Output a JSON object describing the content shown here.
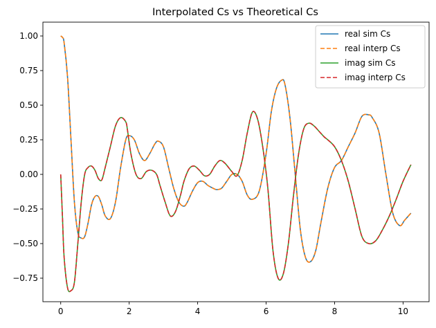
{
  "chart_data": {
    "type": "line",
    "title": "Interpolated Cs vs Theoretical Cs",
    "xlabel": "",
    "ylabel": "",
    "xlim": [
      -0.52,
      10.76
    ],
    "ylim": [
      -0.92,
      1.1
    ],
    "x_ticks": [
      0,
      2,
      4,
      6,
      8,
      10
    ],
    "y_ticks": [
      -0.75,
      -0.5,
      -0.25,
      0.0,
      0.25,
      0.5,
      0.75,
      1.0
    ],
    "y_tick_labels": [
      "−0.75",
      "−0.50",
      "−0.25",
      "0.00",
      "0.25",
      "0.50",
      "0.75",
      "1.00"
    ],
    "grid": false,
    "legend_position": "top-right",
    "series": [
      {
        "name": "real sim Cs",
        "color": "#1f77b4",
        "dash": "solid",
        "x": [
          0,
          0.05,
          0.1,
          0.2,
          0.3,
          0.4,
          0.5,
          0.6,
          0.7,
          0.8,
          0.9,
          1.0,
          1.1,
          1.2,
          1.3,
          1.45,
          1.6,
          1.75,
          1.9,
          2.0,
          2.15,
          2.3,
          2.45,
          2.6,
          2.75,
          2.85,
          3.0,
          3.15,
          3.3,
          3.45,
          3.6,
          3.7,
          3.85,
          4.0,
          4.15,
          4.3,
          4.45,
          4.55,
          4.7,
          4.85,
          5.0,
          5.15,
          5.3,
          5.45,
          5.6,
          5.8,
          6.0,
          6.15,
          6.3,
          6.45,
          6.55,
          6.7,
          6.85,
          7.0,
          7.15,
          7.3,
          7.45,
          7.6,
          7.8,
          8.0,
          8.2,
          8.4,
          8.6,
          8.8,
          9.0,
          9.1,
          9.3,
          9.5,
          9.7,
          9.9,
          10.05,
          10.23
        ],
        "y": [
          1.0,
          0.99,
          0.95,
          0.7,
          0.25,
          -0.2,
          -0.42,
          -0.46,
          -0.45,
          -0.35,
          -0.22,
          -0.16,
          -0.16,
          -0.22,
          -0.3,
          -0.32,
          -0.2,
          0.05,
          0.25,
          0.28,
          0.25,
          0.15,
          0.1,
          0.15,
          0.22,
          0.24,
          0.2,
          0.05,
          -0.1,
          -0.2,
          -0.23,
          -0.2,
          -0.12,
          -0.06,
          -0.05,
          -0.08,
          -0.1,
          -0.11,
          -0.1,
          -0.05,
          0.0,
          0.0,
          -0.05,
          -0.15,
          -0.18,
          -0.12,
          0.15,
          0.45,
          0.62,
          0.68,
          0.65,
          0.4,
          0.0,
          -0.4,
          -0.6,
          -0.63,
          -0.55,
          -0.35,
          -0.1,
          0.05,
          0.1,
          0.2,
          0.3,
          0.42,
          0.43,
          0.41,
          0.3,
          0.0,
          -0.28,
          -0.37,
          -0.33,
          -0.28
        ]
      },
      {
        "name": "real interp Cs",
        "color": "#ff7f0e",
        "dash": "dashed",
        "x": [
          0,
          0.05,
          0.1,
          0.2,
          0.3,
          0.4,
          0.5,
          0.6,
          0.7,
          0.8,
          0.9,
          1.0,
          1.1,
          1.2,
          1.3,
          1.45,
          1.6,
          1.75,
          1.9,
          2.0,
          2.15,
          2.3,
          2.45,
          2.6,
          2.75,
          2.85,
          3.0,
          3.15,
          3.3,
          3.45,
          3.6,
          3.7,
          3.85,
          4.0,
          4.15,
          4.3,
          4.45,
          4.55,
          4.7,
          4.85,
          5.0,
          5.15,
          5.3,
          5.45,
          5.6,
          5.8,
          6.0,
          6.15,
          6.3,
          6.45,
          6.55,
          6.7,
          6.85,
          7.0,
          7.15,
          7.3,
          7.45,
          7.6,
          7.8,
          8.0,
          8.2,
          8.4,
          8.6,
          8.8,
          9.0,
          9.1,
          9.3,
          9.5,
          9.7,
          9.9,
          10.05,
          10.23
        ],
        "y": [
          1.0,
          0.99,
          0.95,
          0.7,
          0.25,
          -0.2,
          -0.42,
          -0.46,
          -0.45,
          -0.35,
          -0.22,
          -0.16,
          -0.16,
          -0.22,
          -0.3,
          -0.32,
          -0.2,
          0.05,
          0.25,
          0.28,
          0.25,
          0.15,
          0.1,
          0.15,
          0.22,
          0.24,
          0.2,
          0.05,
          -0.1,
          -0.2,
          -0.23,
          -0.2,
          -0.12,
          -0.06,
          -0.05,
          -0.08,
          -0.1,
          -0.11,
          -0.1,
          -0.05,
          0.0,
          0.0,
          -0.05,
          -0.15,
          -0.18,
          -0.12,
          0.15,
          0.45,
          0.62,
          0.68,
          0.65,
          0.4,
          0.0,
          -0.4,
          -0.6,
          -0.63,
          -0.55,
          -0.35,
          -0.1,
          0.05,
          0.1,
          0.2,
          0.3,
          0.42,
          0.43,
          0.41,
          0.3,
          0.0,
          -0.28,
          -0.37,
          -0.33,
          -0.28
        ]
      },
      {
        "name": "imag sim Cs",
        "color": "#2ca02c",
        "dash": "solid",
        "x": [
          0,
          0.05,
          0.1,
          0.2,
          0.3,
          0.4,
          0.5,
          0.6,
          0.7,
          0.8,
          0.9,
          1.0,
          1.1,
          1.2,
          1.3,
          1.45,
          1.6,
          1.75,
          1.9,
          1.95,
          2.05,
          2.2,
          2.35,
          2.5,
          2.65,
          2.8,
          2.9,
          3.05,
          3.2,
          3.35,
          3.5,
          3.6,
          3.75,
          3.9,
          4.05,
          4.2,
          4.35,
          4.5,
          4.65,
          4.8,
          5.0,
          5.15,
          5.3,
          5.45,
          5.6,
          5.75,
          5.9,
          6.05,
          6.2,
          6.35,
          6.5,
          6.65,
          6.8,
          6.95,
          7.1,
          7.25,
          7.4,
          7.55,
          7.7,
          7.8,
          8.0,
          8.2,
          8.4,
          8.6,
          8.8,
          9.0,
          9.2,
          9.4,
          9.6,
          9.8,
          10.0,
          10.23
        ],
        "y": [
          0.0,
          -0.3,
          -0.6,
          -0.82,
          -0.84,
          -0.78,
          -0.5,
          -0.2,
          0.0,
          0.05,
          0.06,
          0.03,
          -0.03,
          -0.04,
          0.05,
          0.2,
          0.35,
          0.41,
          0.38,
          0.32,
          0.15,
          0.0,
          -0.03,
          0.02,
          0.03,
          0.0,
          -0.08,
          -0.2,
          -0.3,
          -0.27,
          -0.15,
          -0.05,
          0.04,
          0.06,
          0.03,
          -0.01,
          0.0,
          0.06,
          0.1,
          0.08,
          0.02,
          -0.01,
          0.1,
          0.3,
          0.45,
          0.4,
          0.2,
          -0.1,
          -0.55,
          -0.75,
          -0.72,
          -0.5,
          -0.15,
          0.15,
          0.33,
          0.37,
          0.35,
          0.31,
          0.27,
          0.25,
          0.2,
          0.1,
          -0.05,
          -0.25,
          -0.45,
          -0.5,
          -0.48,
          -0.4,
          -0.3,
          -0.18,
          -0.05,
          0.07
        ]
      },
      {
        "name": "imag interp Cs",
        "color": "#d62728",
        "dash": "dashed",
        "x": [
          0,
          0.05,
          0.1,
          0.2,
          0.3,
          0.4,
          0.5,
          0.6,
          0.7,
          0.8,
          0.9,
          1.0,
          1.1,
          1.2,
          1.3,
          1.45,
          1.6,
          1.75,
          1.9,
          1.95,
          2.05,
          2.2,
          2.35,
          2.5,
          2.65,
          2.8,
          2.9,
          3.05,
          3.2,
          3.35,
          3.5,
          3.6,
          3.75,
          3.9,
          4.05,
          4.2,
          4.35,
          4.5,
          4.65,
          4.8,
          5.0,
          5.15,
          5.3,
          5.45,
          5.6,
          5.75,
          5.9,
          6.05,
          6.2,
          6.35,
          6.5,
          6.65,
          6.8,
          6.95,
          7.1,
          7.25,
          7.4,
          7.55,
          7.7,
          7.8,
          8.0,
          8.2,
          8.4,
          8.6,
          8.8,
          9.0,
          9.2,
          9.4,
          9.6,
          9.8,
          10.0,
          10.23
        ],
        "y": [
          0.0,
          -0.3,
          -0.6,
          -0.82,
          -0.84,
          -0.78,
          -0.5,
          -0.2,
          0.0,
          0.05,
          0.06,
          0.03,
          -0.03,
          -0.04,
          0.05,
          0.2,
          0.35,
          0.41,
          0.38,
          0.32,
          0.15,
          0.0,
          -0.03,
          0.02,
          0.03,
          0.0,
          -0.08,
          -0.2,
          -0.3,
          -0.27,
          -0.15,
          -0.05,
          0.04,
          0.06,
          0.03,
          -0.01,
          0.0,
          0.06,
          0.1,
          0.08,
          0.02,
          -0.01,
          0.1,
          0.3,
          0.45,
          0.4,
          0.2,
          -0.1,
          -0.55,
          -0.75,
          -0.72,
          -0.5,
          -0.15,
          0.15,
          0.33,
          0.37,
          0.35,
          0.31,
          0.27,
          0.25,
          0.2,
          0.1,
          -0.05,
          -0.25,
          -0.45,
          -0.5,
          -0.48,
          -0.4,
          -0.3,
          -0.18,
          -0.05,
          0.07
        ]
      }
    ]
  }
}
